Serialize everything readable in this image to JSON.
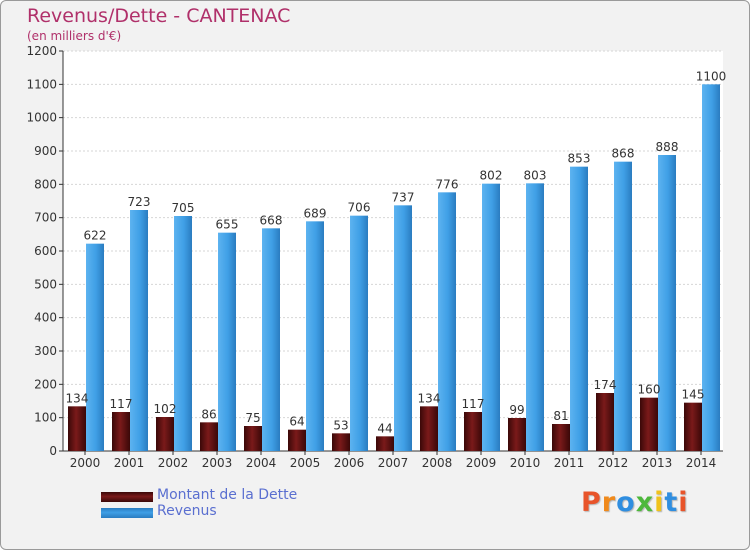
{
  "title": "Revenus/Dette - CANTENAC",
  "subtitle": "(en milliers d'€)",
  "logo": {
    "text": "Proxiti",
    "letter_colors": [
      "#e8542a",
      "#f08a1c",
      "#2f8ee0",
      "#4db83b",
      "#f0c21c",
      "#2f8ee0",
      "#e8542a"
    ]
  },
  "colors": {
    "dette": "#7a1a1a",
    "revenus": "#3f9fe6",
    "title": "#b0306a",
    "legend_text": "#5a6fd0"
  },
  "chart_data": {
    "type": "bar",
    "categories": [
      "2000",
      "2001",
      "2002",
      "2003",
      "2004",
      "2005",
      "2006",
      "2007",
      "2008",
      "2009",
      "2010",
      "2011",
      "2012",
      "2013",
      "2014"
    ],
    "series": [
      {
        "name": "Montant de la Dette",
        "values": [
          134,
          117,
          102,
          86,
          75,
          64,
          53,
          44,
          134,
          117,
          99,
          81,
          174,
          160,
          145
        ]
      },
      {
        "name": "Revenus",
        "values": [
          622,
          723,
          705,
          655,
          668,
          689,
          706,
          737,
          776,
          802,
          803,
          853,
          868,
          888,
          1100
        ]
      }
    ],
    "yticks": [
      0,
      100,
      200,
      300,
      400,
      500,
      600,
      700,
      800,
      900,
      1000,
      1100,
      1200
    ],
    "ylim": [
      0,
      1200
    ],
    "grid": true,
    "legend": "bottom-left"
  }
}
